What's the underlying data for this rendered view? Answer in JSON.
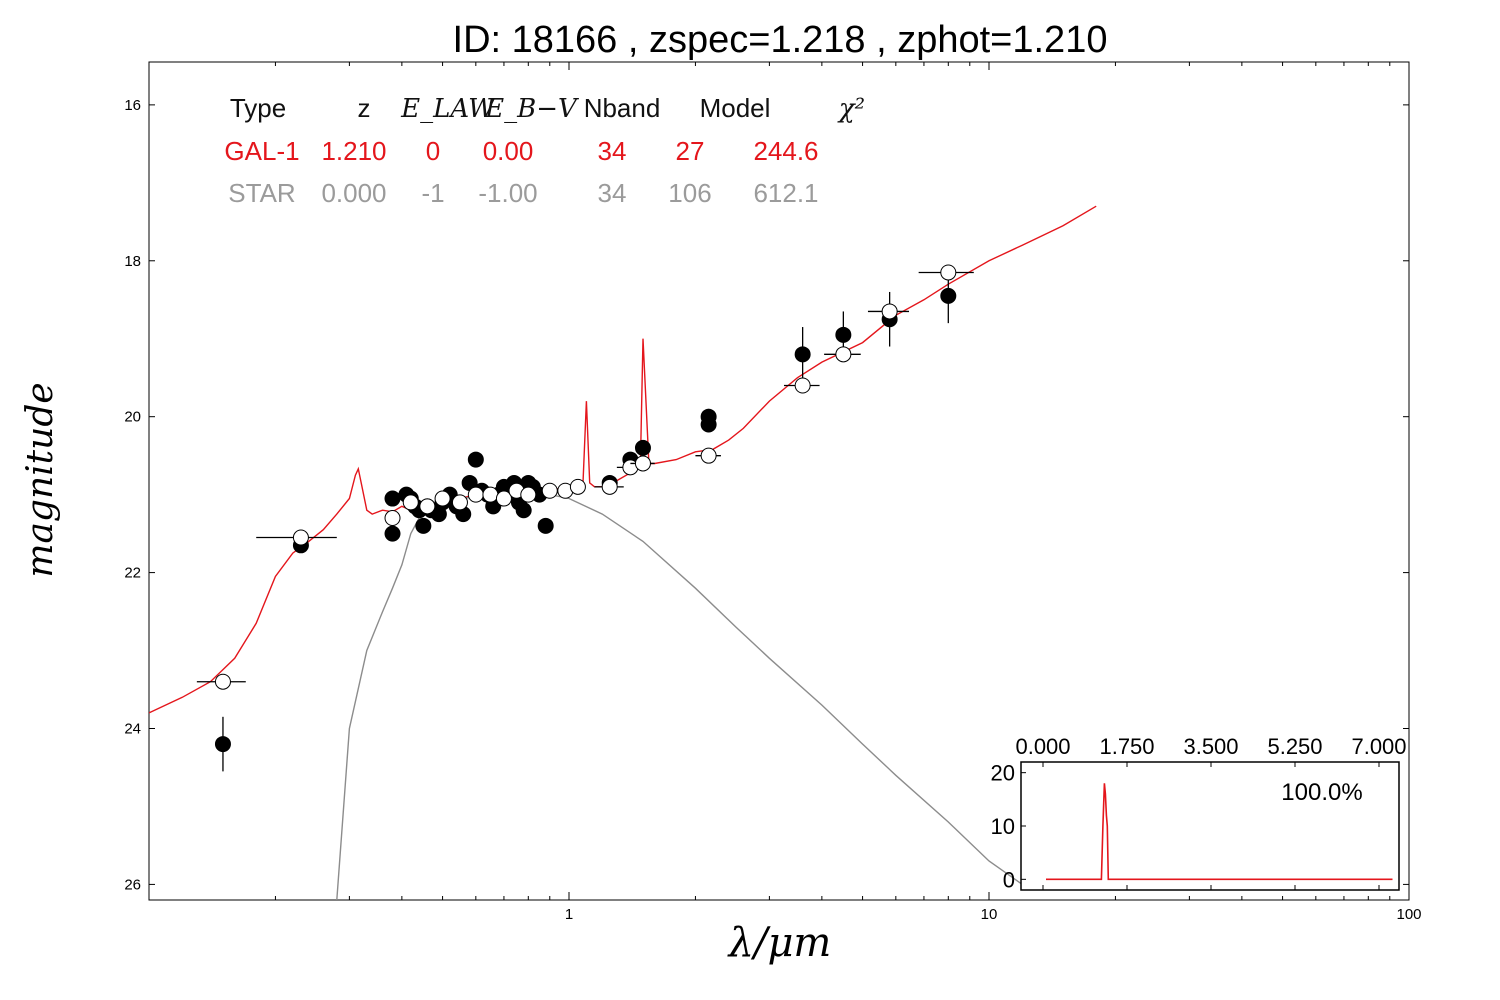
{
  "chart_data": {
    "type": "scatter",
    "title": "ID:  18166 , zspec=1.218 , zphot=1.210",
    "xlabel": "λ/μm",
    "ylabel": "magnitude",
    "xscale": "log",
    "xlim": [
      0.1,
      100
    ],
    "ylim": [
      26.2,
      15.45
    ],
    "y_inverted": true,
    "xtick_labels": [
      "1",
      "10",
      "100"
    ],
    "ytick_labels": [
      "16",
      "18",
      "20",
      "22",
      "24",
      "26"
    ],
    "colors": {
      "galaxy": "#e4161c",
      "star": "#8c8c8c",
      "axes": "#000000"
    },
    "fit_table": {
      "headers": [
        "Type",
        "z",
        "E_LAW",
        "E_B−V",
        "Nband",
        "Model",
        "χ²"
      ],
      "rows": [
        {
          "type": "GAL-1",
          "z": "1.210",
          "e_law": "0",
          "e_bv": "0.00",
          "nband": "34",
          "model": "27",
          "chi2": "244.6",
          "color": "#e4161c"
        },
        {
          "type": "STAR",
          "z": "0.000",
          "e_law": "-1",
          "e_bv": "-1.00",
          "nband": "34",
          "model": "106",
          "chi2": "612.1",
          "color": "#9b9b9b"
        }
      ]
    },
    "series": [
      {
        "name": "GAL-1",
        "kind": "line",
        "color": "#e4161c",
        "x": [
          0.1,
          0.12,
          0.14,
          0.16,
          0.18,
          0.2,
          0.22,
          0.24,
          0.26,
          0.28,
          0.3,
          0.31,
          0.315,
          0.32,
          0.33,
          0.34,
          0.36,
          0.38,
          0.4,
          0.42,
          0.45,
          0.5,
          0.55,
          0.6,
          0.65,
          0.7,
          0.75,
          0.8,
          0.85,
          0.9,
          0.95,
          1.0,
          1.05,
          1.08,
          1.1,
          1.12,
          1.15,
          1.2,
          1.3,
          1.4,
          1.45,
          1.48,
          1.5,
          1.55,
          1.6,
          1.8,
          2.0,
          2.2,
          2.4,
          2.6,
          3.0,
          3.5,
          4.0,
          5.0,
          6.0,
          7.0,
          8.0,
          10.0,
          12.0,
          15.0,
          18.0
        ],
        "y": [
          23.8,
          23.6,
          23.4,
          23.1,
          22.65,
          22.05,
          21.75,
          21.6,
          21.45,
          21.25,
          21.05,
          20.75,
          20.67,
          20.85,
          21.2,
          21.25,
          21.2,
          21.22,
          21.15,
          21.2,
          21.15,
          21.1,
          21.05,
          21.0,
          21.0,
          20.98,
          20.98,
          20.95,
          20.97,
          20.95,
          20.92,
          20.95,
          20.9,
          20.85,
          19.8,
          20.85,
          20.9,
          20.9,
          20.82,
          20.72,
          20.6,
          20.55,
          19.0,
          20.6,
          20.6,
          20.55,
          20.45,
          20.42,
          20.3,
          20.15,
          19.8,
          19.5,
          19.3,
          19.05,
          18.7,
          18.5,
          18.3,
          18.0,
          17.8,
          17.55,
          17.3
        ]
      },
      {
        "name": "STAR",
        "kind": "line",
        "color": "#8c8c8c",
        "x": [
          0.28,
          0.3,
          0.33,
          0.36,
          0.38,
          0.4,
          0.42,
          0.45,
          0.5,
          0.55,
          0.6,
          0.7,
          0.8,
          0.9,
          1.0,
          1.2,
          1.5,
          2.0,
          2.5,
          3.0,
          4.0,
          5.0,
          6.0,
          8.0,
          10.0,
          12.0
        ],
        "y": [
          26.2,
          24.0,
          23.0,
          22.5,
          22.2,
          21.9,
          21.5,
          21.2,
          21.1,
          21.05,
          21.03,
          21.0,
          21.0,
          21.0,
          21.05,
          21.25,
          21.6,
          22.2,
          22.7,
          23.1,
          23.7,
          24.2,
          24.6,
          25.2,
          25.7,
          26.0
        ]
      },
      {
        "name": "observed",
        "kind": "points",
        "marker": "filled",
        "x": [
          0.15,
          0.23,
          0.38,
          0.38,
          0.41,
          0.42,
          0.43,
          0.44,
          0.45,
          0.46,
          0.47,
          0.49,
          0.5,
          0.52,
          0.54,
          0.56,
          0.58,
          0.6,
          0.62,
          0.64,
          0.66,
          0.68,
          0.7,
          0.72,
          0.74,
          0.76,
          0.78,
          0.8,
          0.82,
          0.85,
          0.88,
          1.25,
          1.4,
          1.5,
          2.15,
          2.15,
          3.6,
          4.5,
          5.8,
          8.0
        ],
        "y": [
          24.2,
          21.65,
          21.05,
          21.5,
          21.0,
          21.05,
          21.15,
          21.2,
          21.4,
          21.15,
          21.2,
          21.25,
          21.1,
          21.0,
          21.15,
          21.25,
          20.85,
          20.55,
          20.95,
          21.0,
          21.15,
          21.0,
          20.9,
          20.95,
          20.85,
          21.1,
          21.2,
          20.85,
          20.9,
          21.0,
          21.4,
          20.85,
          20.55,
          20.4,
          20.1,
          20.0,
          19.2,
          18.95,
          18.75,
          18.45
        ],
        "yerr": [
          0.35,
          0.08,
          0.05,
          0.08,
          0.05,
          0.05,
          0.05,
          0.05,
          0.06,
          0.05,
          0.05,
          0.05,
          0.05,
          0.05,
          0.05,
          0.06,
          0.05,
          0.05,
          0.05,
          0.05,
          0.05,
          0.05,
          0.05,
          0.05,
          0.05,
          0.05,
          0.05,
          0.05,
          0.05,
          0.05,
          0.08,
          0.05,
          0.06,
          0.06,
          0.1,
          0.1,
          0.35,
          0.3,
          0.35,
          0.35
        ]
      },
      {
        "name": "model",
        "kind": "points",
        "marker": "open",
        "x": [
          0.15,
          0.23,
          0.38,
          0.42,
          0.46,
          0.5,
          0.55,
          0.6,
          0.65,
          0.7,
          0.75,
          0.8,
          0.9,
          0.98,
          1.05,
          1.25,
          1.4,
          1.5,
          2.15,
          3.6,
          4.5,
          5.8,
          8.0
        ],
        "y": [
          23.4,
          21.55,
          21.3,
          21.1,
          21.15,
          21.05,
          21.1,
          21.0,
          21.0,
          21.05,
          20.95,
          21.0,
          20.95,
          20.95,
          20.9,
          20.9,
          20.65,
          20.6,
          20.5,
          19.6,
          19.2,
          18.65,
          18.15
        ],
        "xerr": [
          0.02,
          0.05,
          0.01,
          0.01,
          0.01,
          0.01,
          0.01,
          0.01,
          0.01,
          0.02,
          0.02,
          0.02,
          0.02,
          0.02,
          0.03,
          0.1,
          0.1,
          0.1,
          0.15,
          0.35,
          0.45,
          0.65,
          1.2
        ]
      }
    ],
    "inset": {
      "type": "line",
      "label": "100.0%",
      "xlim": [
        -0.1,
        7.0
      ],
      "ylim": [
        -2,
        22
      ],
      "xtick_labels": [
        "0.000",
        "1.750",
        "3.500",
        "5.250",
        "7.000"
      ],
      "ytick_labels": [
        "0",
        "10",
        "20"
      ],
      "color": "#e4161c",
      "x": [
        0.0,
        1.08,
        1.12,
        1.15,
        1.18,
        1.2,
        1.22,
        1.24,
        1.26,
        1.3,
        7.0
      ],
      "y": [
        0,
        0,
        0,
        10,
        18,
        16,
        12,
        10,
        0,
        0,
        0
      ]
    }
  }
}
